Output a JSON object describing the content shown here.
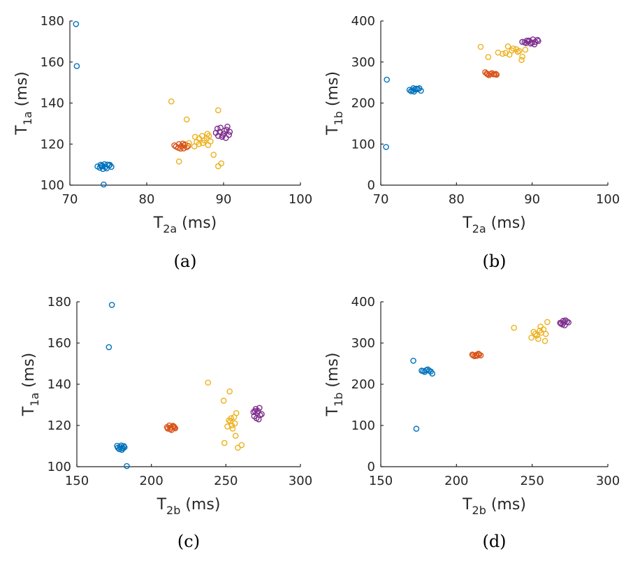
{
  "chart_data": [
    {
      "type": "scatter",
      "caption": "(a)",
      "xlabel": {
        "base": "T",
        "sub": "2a",
        "unit": " (ms)"
      },
      "ylabel": {
        "base": "T",
        "sub": "1a",
        "unit": " (ms)"
      },
      "xlim": [
        70,
        100
      ],
      "ylim": [
        100,
        180
      ],
      "xticks": [
        70,
        80,
        90,
        100
      ],
      "yticks": [
        100,
        120,
        140,
        160,
        180
      ],
      "series": [
        {
          "color": "#0072BD",
          "points": [
            [
              70.8,
              178.5
            ],
            [
              70.9,
              158
            ],
            [
              74.4,
              100.3
            ],
            [
              74.2,
              109.5
            ],
            [
              74.6,
              108.8
            ],
            [
              73.9,
              108.5
            ],
            [
              75.1,
              109.6
            ],
            [
              74.5,
              110.2
            ],
            [
              74.0,
              109.9
            ],
            [
              74.8,
              108.2
            ],
            [
              73.6,
              109.1
            ],
            [
              75.4,
              108.9
            ],
            [
              74.3,
              107.9
            ],
            [
              74.9,
              110.0
            ],
            [
              74.1,
              109.2
            ],
            [
              75.2,
              109.9
            ]
          ]
        },
        {
          "color": "#D95319",
          "points": [
            [
              84.5,
              119
            ],
            [
              84.1,
              118.2
            ],
            [
              84.9,
              119.5
            ],
            [
              83.8,
              118.8
            ],
            [
              85.2,
              118.5
            ],
            [
              84.4,
              117.8
            ],
            [
              84.7,
              120.2
            ],
            [
              83.6,
              119.4
            ],
            [
              85.0,
              119.8
            ],
            [
              84.2,
              120.0
            ],
            [
              84.8,
              117.9
            ],
            [
              85.4,
              119.1
            ]
          ]
        },
        {
          "color": "#EDB120",
          "points": [
            [
              83.2,
              140.8
            ],
            [
              85.2,
              132
            ],
            [
              86.3,
              123.5
            ],
            [
              86.8,
              120
            ],
            [
              84.2,
              111.5
            ],
            [
              87.2,
              124
            ],
            [
              87.8,
              122.8
            ],
            [
              88.0,
              119.5
            ],
            [
              86.5,
              121
            ],
            [
              88.3,
              121.3
            ],
            [
              87.5,
              121.8
            ],
            [
              87.9,
              125
            ],
            [
              86.8,
              122.8
            ],
            [
              88.1,
              124
            ],
            [
              87.3,
              120.5
            ],
            [
              88.7,
              114.8
            ],
            [
              89.3,
              109.2
            ],
            [
              89.7,
              110.6
            ],
            [
              89.3,
              136.5
            ],
            [
              85.5,
              120.5
            ],
            [
              86.2,
              118.9
            ]
          ]
        },
        {
          "color": "#7E2F8E",
          "points": [
            [
              89.5,
              126
            ],
            [
              90.0,
              125
            ],
            [
              89.3,
              124
            ],
            [
              90.4,
              127
            ],
            [
              90.7,
              124.5
            ],
            [
              89.8,
              123.5
            ],
            [
              89.2,
              127.5
            ],
            [
              90.1,
              126.5
            ],
            [
              90.8,
              126
            ],
            [
              89.6,
              128
            ],
            [
              90.3,
              123
            ],
            [
              89.0,
              125.5
            ],
            [
              90.5,
              128.5
            ],
            [
              89.9,
              124.2
            ]
          ]
        }
      ]
    },
    {
      "type": "scatter",
      "caption": "(b)",
      "xlabel": {
        "base": "T",
        "sub": "2a",
        "unit": " (ms)"
      },
      "ylabel": {
        "base": "T",
        "sub": "1b",
        "unit": " (ms)"
      },
      "xlim": [
        70,
        100
      ],
      "ylim": [
        0,
        400
      ],
      "xticks": [
        70,
        80,
        90,
        100
      ],
      "yticks": [
        0,
        100,
        200,
        300,
        400
      ],
      "series": [
        {
          "color": "#0072BD",
          "points": [
            [
              70.8,
              257
            ],
            [
              70.7,
              93
            ],
            [
              74.5,
              233
            ],
            [
              74.2,
              231
            ],
            [
              74.9,
              234
            ],
            [
              74.0,
              229
            ],
            [
              75.1,
              236
            ],
            [
              74.4,
              228
            ],
            [
              74.7,
              235
            ],
            [
              73.8,
              232
            ],
            [
              75.3,
              230
            ],
            [
              74.3,
              236
            ]
          ]
        },
        {
          "color": "#D95319",
          "points": [
            [
              84.5,
              271
            ],
            [
              84.0,
              272
            ],
            [
              84.9,
              270
            ],
            [
              83.8,
              275
            ],
            [
              85.2,
              271
            ],
            [
              84.3,
              268
            ],
            [
              84.7,
              273
            ],
            [
              85.0,
              270
            ],
            [
              84.1,
              270
            ],
            [
              85.3,
              269
            ]
          ]
        },
        {
          "color": "#EDB120",
          "points": [
            [
              83.2,
              337
            ],
            [
              84.2,
              312
            ],
            [
              85.5,
              323
            ],
            [
              86.1,
              320
            ],
            [
              86.8,
              338
            ],
            [
              87.3,
              328
            ],
            [
              87.9,
              331
            ],
            [
              88.1,
              325
            ],
            [
              87.5,
              333
            ],
            [
              88.3,
              327
            ],
            [
              86.5,
              322
            ],
            [
              88.7,
              313
            ],
            [
              88.6,
              305
            ],
            [
              87.0,
              318
            ],
            [
              89.1,
              330
            ]
          ]
        },
        {
          "color": "#7E2F8E",
          "points": [
            [
              89.5,
              350
            ],
            [
              90.0,
              347
            ],
            [
              89.3,
              352
            ],
            [
              90.4,
              349
            ],
            [
              90.7,
              354
            ],
            [
              89.8,
              345
            ],
            [
              89.2,
              346
            ],
            [
              90.1,
              355
            ],
            [
              90.8,
              351
            ],
            [
              89.6,
              352
            ],
            [
              90.3,
              343
            ],
            [
              89.0,
              348
            ],
            [
              88.7,
              349
            ]
          ]
        }
      ]
    },
    {
      "type": "scatter",
      "caption": "(c)",
      "xlabel": {
        "base": "T",
        "sub": "2b",
        "unit": " (ms)"
      },
      "ylabel": {
        "base": "T",
        "sub": "1a",
        "unit": " (ms)"
      },
      "xlim": [
        150,
        300
      ],
      "ylim": [
        100,
        180
      ],
      "xticks": [
        150,
        200,
        250,
        300
      ],
      "yticks": [
        100,
        120,
        140,
        160,
        180
      ],
      "series": [
        {
          "color": "#0072BD",
          "points": [
            [
              173.5,
              178.5
            ],
            [
              171.5,
              158
            ],
            [
              183.5,
              100.3
            ],
            [
              179,
              109.5
            ],
            [
              180.5,
              109
            ],
            [
              177.5,
              109.2
            ],
            [
              181.5,
              110
            ],
            [
              178.5,
              108.5
            ],
            [
              182,
              109.4
            ],
            [
              179.8,
              110.3
            ],
            [
              180.2,
              108.2
            ],
            [
              177,
              110.1
            ],
            [
              181,
              108.9
            ]
          ]
        },
        {
          "color": "#D95319",
          "points": [
            [
              213,
              119
            ],
            [
              211,
              118.5
            ],
            [
              215,
              119.5
            ],
            [
              212,
              120
            ],
            [
              216,
              118.6
            ],
            [
              213.5,
              117.8
            ],
            [
              214.5,
              119.8
            ],
            [
              210.5,
              119.2
            ],
            [
              212.5,
              118.2
            ],
            [
              215.5,
              119.1
            ]
          ]
        },
        {
          "color": "#EDB120",
          "points": [
            [
              238,
              140.8
            ],
            [
              252.5,
              136.5
            ],
            [
              248.5,
              132
            ],
            [
              253,
              122
            ],
            [
              254,
              120
            ],
            [
              255.5,
              124
            ],
            [
              251,
              119.5
            ],
            [
              253.5,
              123.5
            ],
            [
              256,
              121
            ],
            [
              257,
              126
            ],
            [
              254.5,
              118.5
            ],
            [
              256.5,
              115
            ],
            [
              249,
              111.5
            ],
            [
              258,
              109.2
            ],
            [
              260.5,
              110.5
            ],
            [
              252,
              122.5
            ]
          ]
        },
        {
          "color": "#7E2F8E",
          "points": [
            [
              271,
              126
            ],
            [
              269,
              124.5
            ],
            [
              273,
              125
            ],
            [
              270,
              128
            ],
            [
              272,
              123
            ],
            [
              268.5,
              126.5
            ],
            [
              271.5,
              127
            ],
            [
              274,
              125.5
            ],
            [
              270.5,
              123.5
            ],
            [
              272.5,
              128.5
            ],
            [
              269.5,
              127
            ]
          ]
        }
      ]
    },
    {
      "type": "scatter",
      "caption": "(d)",
      "xlabel": {
        "base": "T",
        "sub": "2b",
        "unit": " (ms)"
      },
      "ylabel": {
        "base": "T",
        "sub": "1b",
        "unit": " (ms)"
      },
      "xlim": [
        150,
        300
      ],
      "ylim": [
        0,
        400
      ],
      "xticks": [
        150,
        200,
        250,
        300
      ],
      "yticks": [
        0,
        100,
        200,
        300,
        400
      ],
      "series": [
        {
          "color": "#0072BD",
          "points": [
            [
              171.5,
              257
            ],
            [
              173.5,
              92
            ],
            [
              184,
              226
            ],
            [
              178,
              232
            ],
            [
              180,
              234
            ],
            [
              182,
              233
            ],
            [
              179,
              230
            ],
            [
              181,
              236
            ],
            [
              177,
              233
            ],
            [
              183,
              231
            ]
          ]
        },
        {
          "color": "#D95319",
          "points": [
            [
              213,
              271
            ],
            [
              211,
              270
            ],
            [
              215,
              272
            ],
            [
              212,
              268
            ],
            [
              214.5,
              274
            ],
            [
              216,
              270
            ],
            [
              210.5,
              272
            ],
            [
              213.5,
              269
            ]
          ]
        },
        {
          "color": "#EDB120",
          "points": [
            [
              238,
              337
            ],
            [
              249.5,
              313
            ],
            [
              252,
              322
            ],
            [
              253,
              318
            ],
            [
              255,
              330
            ],
            [
              256,
              325
            ],
            [
              257.5,
              333
            ],
            [
              254,
              310
            ],
            [
              258.5,
              305
            ],
            [
              255.5,
              340
            ],
            [
              260,
              351
            ],
            [
              251,
              327
            ],
            [
              259,
              322
            ]
          ]
        },
        {
          "color": "#7E2F8E",
          "points": [
            [
              271,
              350
            ],
            [
              269,
              347
            ],
            [
              273,
              352
            ],
            [
              270,
              345
            ],
            [
              272,
              355
            ],
            [
              268.5,
              349
            ],
            [
              274,
              350
            ],
            [
              271.5,
              343
            ],
            [
              270.5,
              354
            ]
          ]
        }
      ]
    }
  ]
}
